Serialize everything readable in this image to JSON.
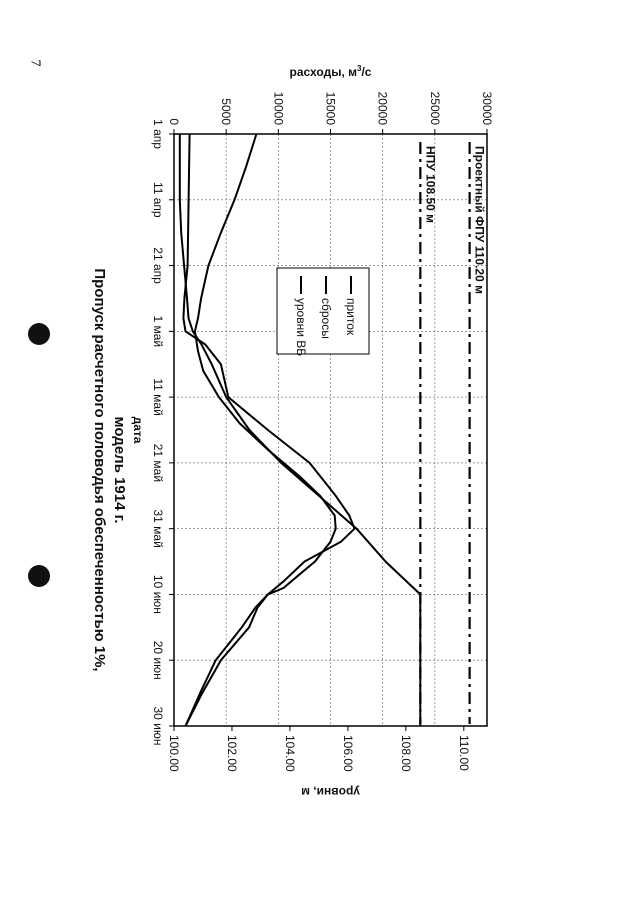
{
  "page": {
    "number": "7"
  },
  "chart_data": {
    "type": "line",
    "title_line1": "Пропуск расчетного половодья обеспеченностью 1%,",
    "title_line2": "модель 1914 г.",
    "xlabel": "дата",
    "ylabel_left": "расходы, м",
    "ylabel_left_sup": "3",
    "ylabel_left_tail": "/с",
    "ylabel_right": "уровни, м",
    "x_categories": [
      "1 апр",
      "11 апр",
      "21 апр",
      "1 май",
      "11 май",
      "21 май",
      "31 май",
      "10 июн",
      "20 июн",
      "30 июн"
    ],
    "x_days": [
      0,
      10,
      20,
      30,
      40,
      50,
      60,
      70,
      80,
      90
    ],
    "y_left_ticks": [
      "0",
      "5000",
      "10000",
      "15000",
      "20000",
      "25000",
      "30000"
    ],
    "y_left_tick_values": [
      0,
      5000,
      10000,
      15000,
      20000,
      25000,
      30000
    ],
    "y_left_lim": [
      0,
      30000
    ],
    "y_right_ticks": [
      "100.00",
      "102.00",
      "104.00",
      "106.00",
      "108.00",
      "110.00"
    ],
    "y_right_tick_values": [
      100,
      102,
      104,
      106,
      108,
      110
    ],
    "y_right_lim": [
      100,
      110.8
    ],
    "grid": true,
    "legend_position": "left-middle",
    "series": [
      {
        "name": "приток",
        "axis": "left",
        "x": [
          0,
          5,
          10,
          15,
          20,
          25,
          28,
          30,
          33,
          36,
          40,
          44,
          48,
          52,
          55,
          58,
          60,
          62,
          65,
          67,
          69,
          70,
          72,
          75,
          80,
          85,
          90
        ],
        "values": [
          7900,
          6900,
          5800,
          4500,
          3300,
          2600,
          2300,
          2000,
          2300,
          2800,
          4300,
          6300,
          9000,
          12000,
          14000,
          15400,
          15500,
          15000,
          13500,
          12000,
          10500,
          9000,
          7800,
          6500,
          4000,
          2500,
          1100
        ]
      },
      {
        "name": "сбросы",
        "axis": "left",
        "x": [
          0,
          10,
          20,
          25,
          28,
          30,
          32,
          35,
          40,
          45,
          50,
          55,
          58,
          60,
          62,
          65,
          68,
          70,
          72,
          75,
          80,
          85,
          90
        ],
        "values": [
          1500,
          1400,
          1300,
          1000,
          900,
          1100,
          3000,
          4500,
          5200,
          9000,
          13000,
          15500,
          16800,
          17300,
          16000,
          12500,
          10500,
          9000,
          8000,
          7200,
          4500,
          2700,
          1100
        ]
      },
      {
        "name": "уровни ВБ",
        "axis": "right",
        "x": [
          0,
          5,
          10,
          15,
          20,
          25,
          28,
          30,
          32,
          35,
          40,
          45,
          50,
          55,
          60,
          65,
          70,
          80,
          90
        ],
        "values": [
          100.2,
          100.2,
          100.2,
          100.25,
          100.35,
          100.45,
          100.5,
          100.65,
          100.95,
          101.3,
          101.8,
          102.6,
          103.7,
          105.0,
          106.3,
          107.3,
          108.5,
          108.5,
          108.5
        ]
      }
    ],
    "reference_lines": [
      {
        "label": "Проектный ФПУ 110.20 м",
        "axis": "right",
        "value": 110.2
      },
      {
        "label": "НПУ 108.50 м",
        "axis": "right",
        "value": 108.5
      }
    ]
  }
}
